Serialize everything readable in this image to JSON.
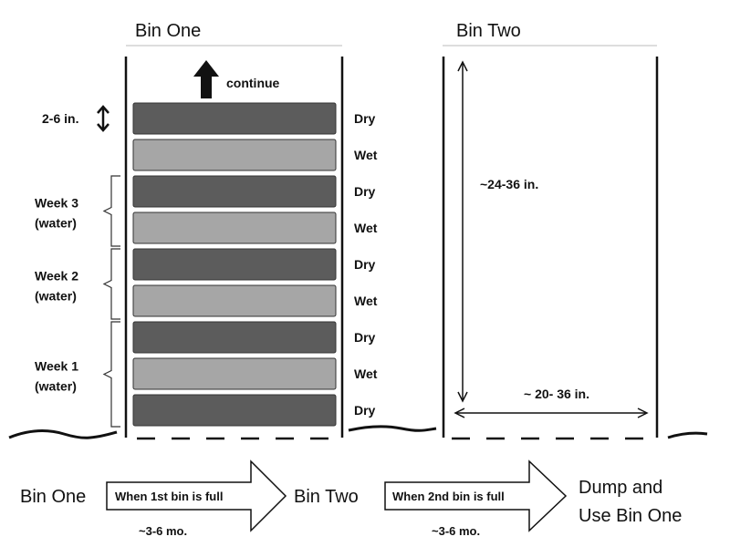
{
  "bin_one": {
    "title": "Bin One",
    "continue_label": "continue",
    "layer_thickness": "2-6 in.",
    "layers": [
      {
        "type": "Dry",
        "color": "#5c5c5c"
      },
      {
        "type": "Wet",
        "color": "#a6a6a6"
      },
      {
        "type": "Dry",
        "color": "#5c5c5c"
      },
      {
        "type": "Wet",
        "color": "#a6a6a6"
      },
      {
        "type": "Dry",
        "color": "#5c5c5c"
      },
      {
        "type": "Wet",
        "color": "#a6a6a6"
      },
      {
        "type": "Dry",
        "color": "#5c5c5c"
      },
      {
        "type": "Wet",
        "color": "#a6a6a6"
      },
      {
        "type": "Dry",
        "color": "#5c5c5c"
      }
    ],
    "weeks": [
      {
        "line1": "Week 3",
        "line2": "(water)"
      },
      {
        "line1": "Week 2",
        "line2": "(water)"
      },
      {
        "line1": "Week 1",
        "line2": "(water)"
      }
    ]
  },
  "bin_two": {
    "title": "Bin Two",
    "height_label": "~24-36 in.",
    "width_label": "~ 20- 36 in."
  },
  "flow": {
    "step1": "Bin One",
    "arrow1": "When 1st bin is full",
    "arrow1_time": "~3-6 mo.",
    "step2": "Bin Two",
    "arrow2": "When 2nd bin is full",
    "arrow2_time": "~3-6 mo.",
    "step3_line1": "Dump and",
    "step3_line2": "Use Bin One"
  }
}
